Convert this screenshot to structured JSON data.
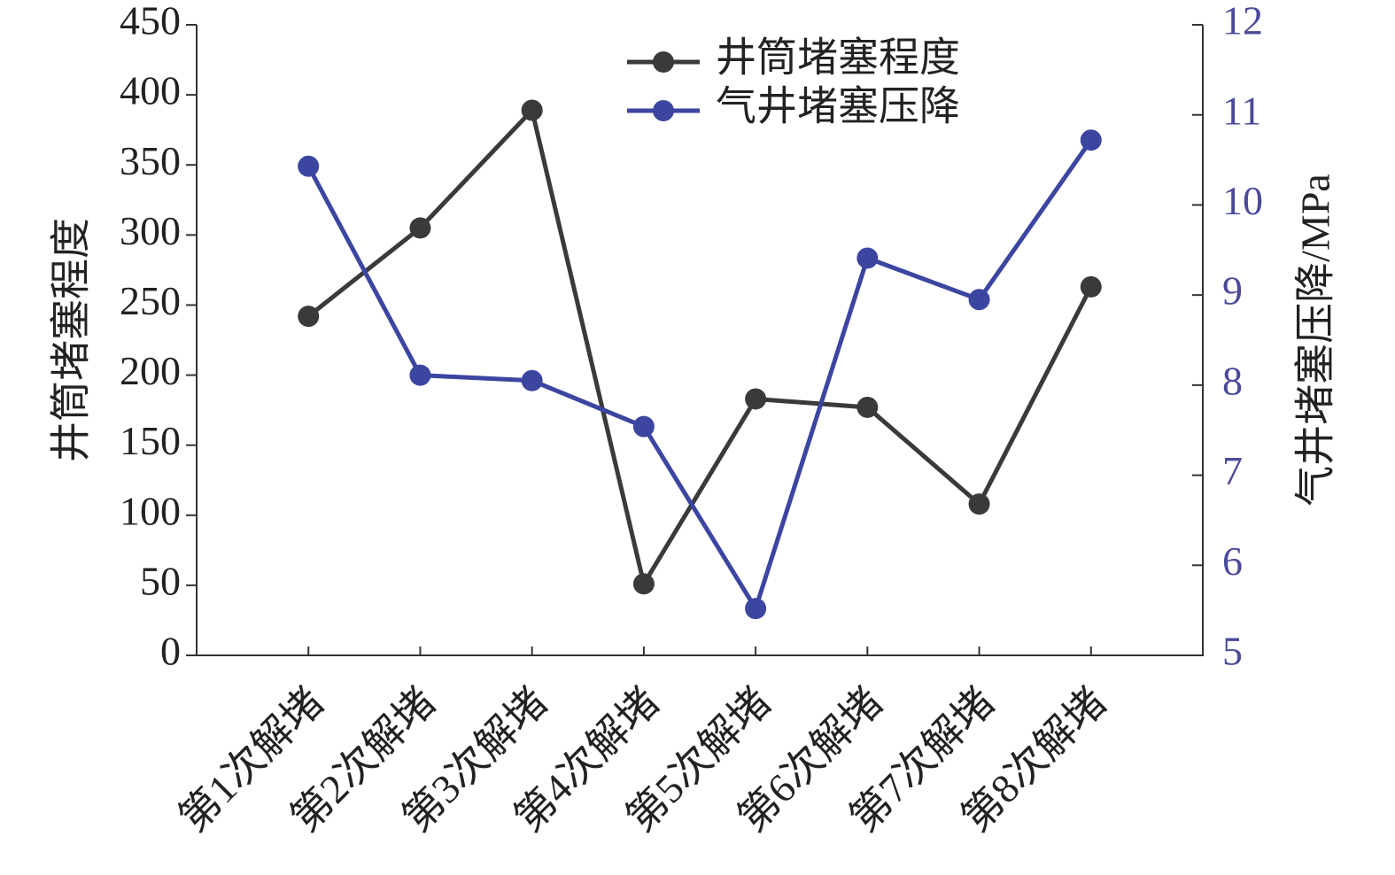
{
  "chart_data": {
    "type": "line",
    "categories": [
      "第1次解堵",
      "第2次解堵",
      "第3次解堵",
      "第4次解堵",
      "第5次解堵",
      "第6次解堵",
      "第7次解堵",
      "第8次解堵"
    ],
    "y_label": "井筒堵塞程度",
    "y2_label": "气井堵塞压降/MPa",
    "ylim": [
      0,
      450
    ],
    "yticks": [
      0,
      50,
      100,
      150,
      200,
      250,
      300,
      350,
      400,
      450
    ],
    "y2lim": [
      5,
      12
    ],
    "y2ticks": [
      5,
      6,
      7,
      8,
      9,
      10,
      11,
      12
    ],
    "legend": "top-center",
    "series": [
      {
        "name": "井筒堵塞程度",
        "color": "#3a3a3a",
        "values": [
          242,
          305,
          389,
          51,
          183,
          177,
          108,
          263
        ]
      },
      {
        "name": "气井堵塞压降",
        "color": "#3c45a0",
        "axis": "y2",
        "values": [
          10.43,
          8.11,
          8.05,
          7.54,
          5.52,
          9.41,
          8.95,
          10.72
        ]
      }
    ]
  }
}
